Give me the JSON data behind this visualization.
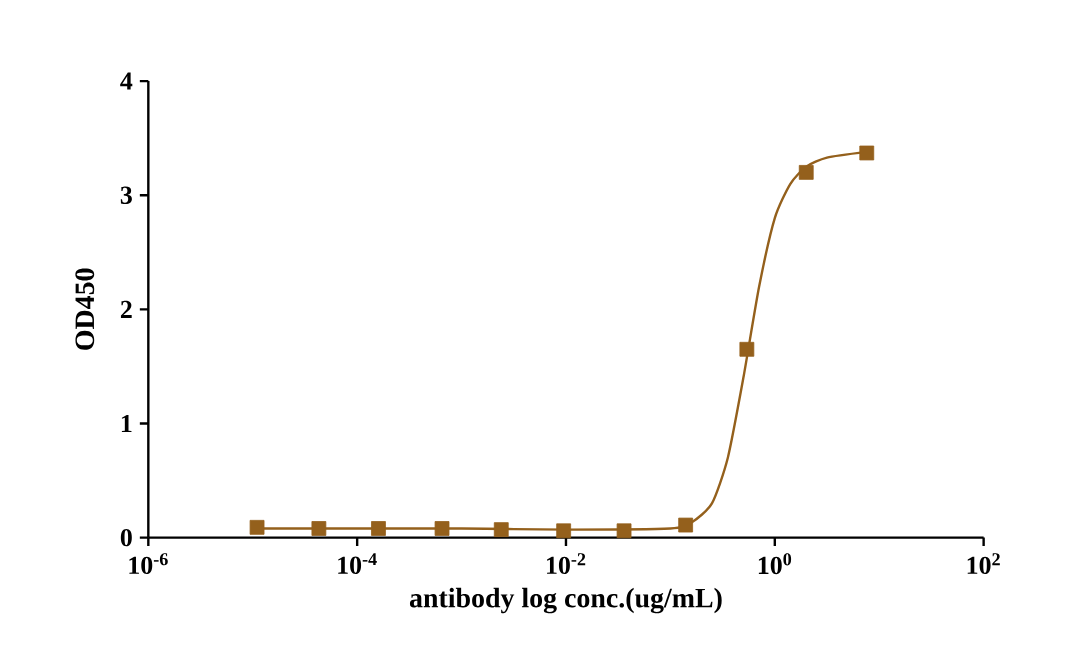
{
  "chart_data": {
    "type": "scatter",
    "xlabel": "antibody log conc.(ug/mL)",
    "ylabel": "OD450",
    "log": "x",
    "xlim": [
      1e-06,
      100
    ],
    "ylim": [
      0,
      4
    ],
    "xticks": [
      {
        "value": 1e-06,
        "label": "10$^{-6}$"
      },
      {
        "value": 0.0001,
        "label": "10$^{-4}$"
      },
      {
        "value": 0.01,
        "label": "10$^{-2}$"
      },
      {
        "value": 1,
        "label": "10$^{0}$"
      },
      {
        "value": 100,
        "label": "10$^{2}$"
      }
    ],
    "yticks": [
      0,
      1,
      2,
      3,
      4
    ],
    "grid": false,
    "series": [
      {
        "type": "line",
        "marker": "none",
        "color": "#94601c",
        "x": [
          1.1e-05,
          0.0001,
          0.001,
          0.01,
          0.1,
          0.158,
          0.25,
          0.355,
          0.5,
          0.708,
          1,
          1.41,
          2,
          3.16,
          7.6
        ],
        "values": [
          0.08,
          0.08,
          0.08,
          0.07,
          0.08,
          0.13,
          0.3,
          0.7,
          1.4,
          2.2,
          2.8,
          3.1,
          3.25,
          3.33,
          3.38
        ]
      },
      {
        "marker": "square",
        "color": "#94601c",
        "x": [
          1.1e-05,
          4.3e-05,
          0.00016,
          0.00065,
          0.0024,
          0.0095,
          0.036,
          0.14,
          0.54,
          2.0,
          7.6
        ],
        "values": [
          0.09,
          0.08,
          0.08,
          0.08,
          0.07,
          0.06,
          0.06,
          0.11,
          1.65,
          3.2,
          3.37
        ]
      }
    ]
  }
}
